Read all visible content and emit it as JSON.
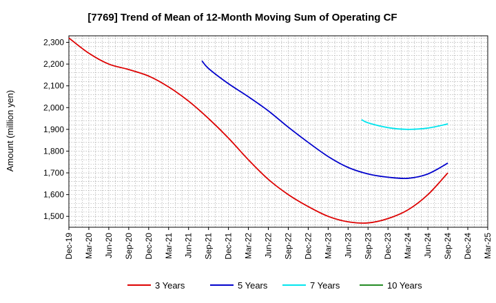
{
  "chart_data": {
    "type": "line",
    "title": "[7769]  Trend of Mean of 12-Month Moving Sum of Operating CF",
    "xlabel": "",
    "ylabel": "Amount (million yen)",
    "ylim": [
      1450,
      2330
    ],
    "yticks": [
      1500,
      1600,
      1700,
      1800,
      1900,
      2000,
      2100,
      2200,
      2300
    ],
    "ytick_labels": [
      "1,500",
      "1,600",
      "1,700",
      "1,800",
      "1,900",
      "2,000",
      "2,100",
      "2,200",
      "2,300"
    ],
    "x_labels": [
      "Dec-19",
      "Mar-20",
      "Jun-20",
      "Sep-20",
      "Dec-20",
      "Mar-21",
      "Jun-21",
      "Sep-21",
      "Dec-21",
      "Mar-22",
      "Jun-22",
      "Sep-22",
      "Dec-22",
      "Mar-23",
      "Jun-23",
      "Sep-23",
      "Dec-23",
      "Mar-24",
      "Jun-24",
      "Sep-24",
      "Dec-24",
      "Mar-25"
    ],
    "grid": true,
    "legend_position": "bottom",
    "series": [
      {
        "name": "3 Years",
        "color": "#dd0000",
        "x": [
          0,
          1,
          2,
          3,
          4,
          5,
          6,
          7,
          8,
          9,
          10,
          11,
          12,
          13,
          14,
          15,
          16,
          17,
          18,
          19
        ],
        "values": [
          2320,
          2250,
          2200,
          2175,
          2145,
          2095,
          2030,
          1950,
          1860,
          1760,
          1670,
          1600,
          1545,
          1500,
          1475,
          1470,
          1490,
          1530,
          1600,
          1700
        ]
      },
      {
        "name": "5 Years",
        "color": "#0000cc",
        "x": [
          6.67,
          7,
          8,
          9,
          10,
          11,
          12,
          13,
          14,
          15,
          16,
          17,
          18,
          19
        ],
        "values": [
          2215,
          2180,
          2110,
          2050,
          1985,
          1910,
          1840,
          1775,
          1725,
          1695,
          1680,
          1675,
          1695,
          1745
        ]
      },
      {
        "name": "7 Years",
        "color": "#00e5ee",
        "x": [
          14.67,
          15,
          16,
          17,
          18,
          19
        ],
        "values": [
          1945,
          1930,
          1908,
          1900,
          1906,
          1925
        ]
      },
      {
        "name": "10 Years",
        "color": "#228b22",
        "x": [],
        "values": []
      }
    ]
  }
}
